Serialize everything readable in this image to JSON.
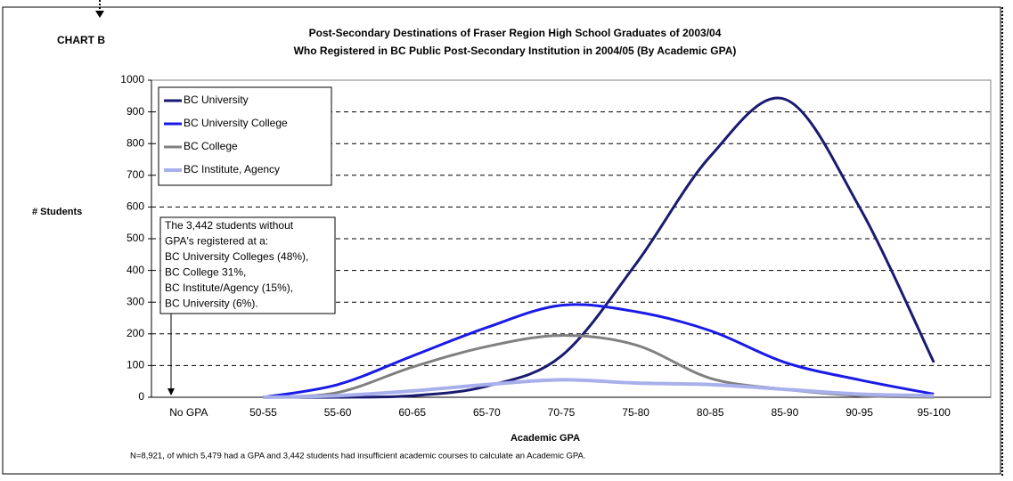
{
  "chart_data": {
    "type": "line",
    "label": "CHART B",
    "title": [
      "Post-Secondary Destinations of Fraser Region High School Graduates of 2003/04",
      "Who Registered in BC Public Post-Secondary Institution in 2004/05 (By Academic GPA)"
    ],
    "y_label": "# Students",
    "x_label": "Academic GPA",
    "footnote": "N=8,921, of which 5,479 had a GPA and 3,442 students had insufficient academic courses to calculate an Academic GPA.",
    "annotation": [
      "The 3,442 students without",
      "GPA's registered at a:",
      "BC University Colleges (48%),",
      "BC College 31%,",
      "BC Institute/Agency (15%),",
      "BC University (6%)."
    ],
    "categories": [
      "No GPA",
      "50-55",
      "55-60",
      "60-65",
      "65-70",
      "70-75",
      "75-80",
      "80-85",
      "85-90",
      "90-95",
      "95-100"
    ],
    "series": [
      {
        "name": "BC University",
        "color": "#1a1a70",
        "values": [
          null,
          0,
          0,
          5,
          35,
          130,
          420,
          760,
          940,
          600,
          110
        ]
      },
      {
        "name": "BC University College",
        "color": "#1a1ae6",
        "values": [
          null,
          0,
          40,
          130,
          220,
          290,
          270,
          210,
          110,
          55,
          10
        ]
      },
      {
        "name": "BC College",
        "color": "#808080",
        "values": [
          null,
          0,
          15,
          95,
          160,
          195,
          165,
          60,
          25,
          5,
          0
        ]
      },
      {
        "name": "BC Institute, Agency",
        "color": "#a8b0ec",
        "values": [
          null,
          0,
          5,
          20,
          40,
          55,
          45,
          40,
          25,
          10,
          5
        ]
      }
    ],
    "ylim": [
      0,
      1000
    ],
    "yticks": [
      0,
      100,
      200,
      300,
      400,
      500,
      600,
      700,
      800,
      900,
      1000
    ],
    "grid": true,
    "legend": "top-left"
  }
}
